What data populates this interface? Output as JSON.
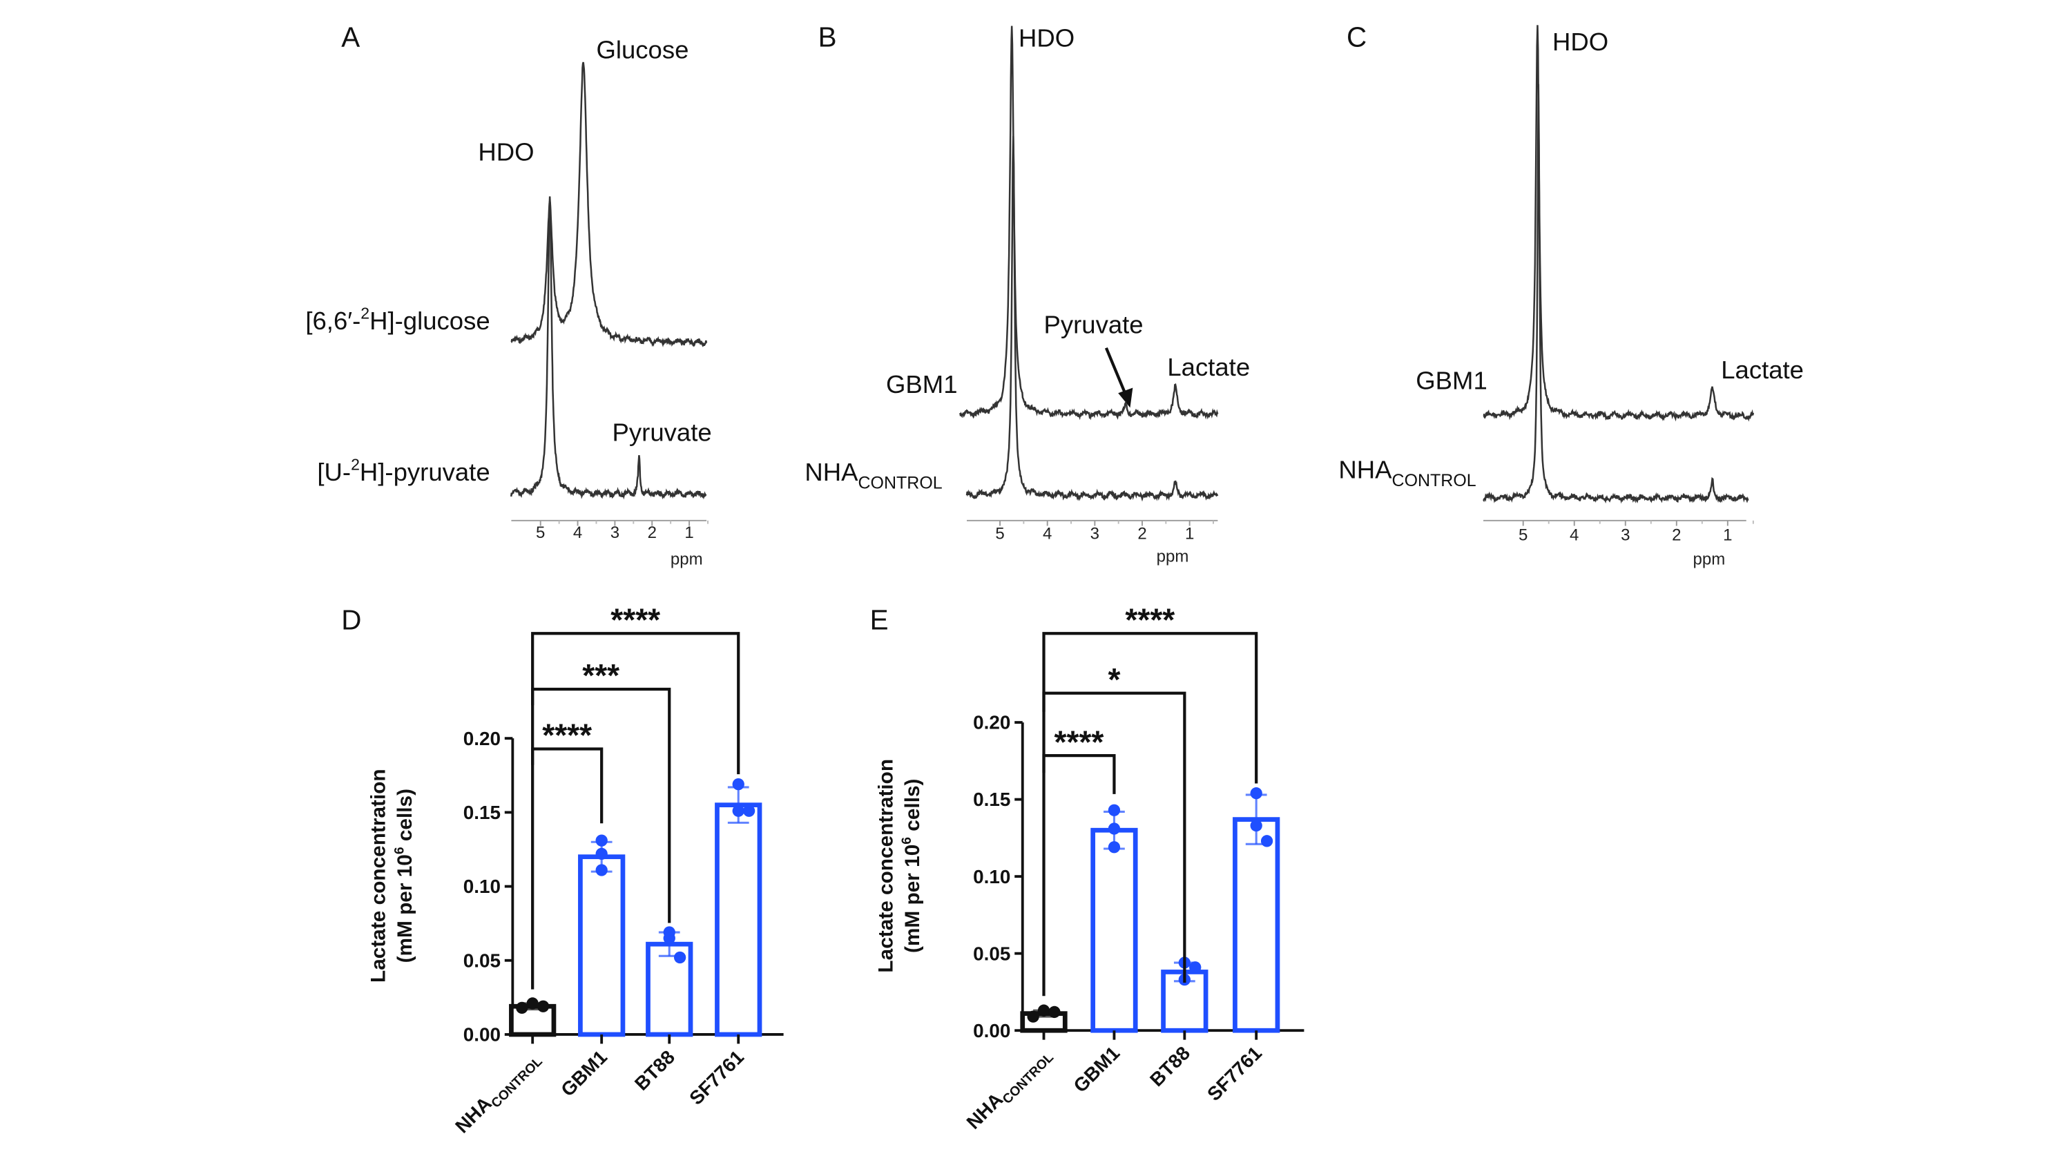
{
  "spectra": [
    {
      "panel": "A",
      "xlabel": "ppm",
      "ticks": [
        5,
        4,
        3,
        2,
        1
      ],
      "traces": [
        {
          "name": "[6,6′-²H]-glucose",
          "peaks": [
            {
              "ppm": 4.75,
              "intensity": 0.3,
              "width": 0.18
            },
            {
              "ppm": 3.85,
              "intensity": 0.62,
              "width": 0.25
            }
          ]
        },
        {
          "name": "[U-²H]-pyruvate",
          "peaks": [
            {
              "ppm": 4.75,
              "intensity": 0.66,
              "width": 0.12
            },
            {
              "ppm": 2.35,
              "intensity": 0.08,
              "width": 0.06
            }
          ]
        }
      ],
      "annotations": {
        "glucose": "Glucose",
        "hdo": "HDO",
        "pyruvate": "Pyruvate"
      },
      "trace_labels": {
        "t1_pre": "[6,6′-",
        "t1_sup": "2",
        "t1_post": "H]-glucose",
        "t2_pre": "[U-",
        "t2_sup": "2",
        "t2_post": "H]-pyruvate"
      }
    },
    {
      "panel": "B",
      "xlabel": "ppm",
      "ticks": [
        5,
        4,
        3,
        2,
        1
      ],
      "traces": [
        {
          "name": "GBM1",
          "peaks": [
            {
              "ppm": 4.75,
              "intensity": 0.86,
              "width": 0.1
            },
            {
              "ppm": 2.35,
              "intensity": 0.02,
              "width": 0.08
            },
            {
              "ppm": 1.3,
              "intensity": 0.06,
              "width": 0.1
            }
          ]
        },
        {
          "name": "NHA CONTROL",
          "peaks": [
            {
              "ppm": 4.72,
              "intensity": 0.8,
              "width": 0.07
            },
            {
              "ppm": 1.3,
              "intensity": 0.03,
              "width": 0.06
            }
          ]
        }
      ],
      "annotations": {
        "hdo": "HDO",
        "pyruvate": "Pyruvate",
        "lactate": "Lactate"
      },
      "trace_labels": {
        "gbm": "GBM1",
        "nha": "NHA",
        "nha_sub": "CONTROL"
      }
    },
    {
      "panel": "C",
      "xlabel": "ppm",
      "ticks": [
        5,
        4,
        3,
        2,
        1
      ],
      "traces": [
        {
          "name": "GBM1",
          "peaks": [
            {
              "ppm": 4.72,
              "intensity": 0.87,
              "width": 0.08
            },
            {
              "ppm": 1.3,
              "intensity": 0.06,
              "width": 0.1
            }
          ]
        },
        {
          "name": "NHA CONTROL",
          "peaks": [
            {
              "ppm": 4.7,
              "intensity": 0.92,
              "width": 0.05
            },
            {
              "ppm": 1.3,
              "intensity": 0.04,
              "width": 0.05
            }
          ]
        }
      ],
      "annotations": {
        "hdo": "HDO",
        "lactate": "Lactate"
      },
      "trace_labels": {
        "gbm": "GBM1",
        "nha": "NHA",
        "nha_sub": "CONTROL"
      }
    }
  ],
  "chart_data": [
    {
      "panel": "D",
      "type": "bar",
      "categories": [
        "NHA CONTROL",
        "GBM1",
        "BT88",
        "SF7761"
      ],
      "cat_main": [
        "NHA",
        "GBM1",
        "BT88",
        "SF7761"
      ],
      "cat_sub": [
        "CONTROL",
        "",
        "",
        ""
      ],
      "values": [
        0.019,
        0.12,
        0.061,
        0.155
      ],
      "errors": [
        0.002,
        0.01,
        0.008,
        0.012
      ],
      "points": [
        [
          0.018,
          0.021,
          0.019
        ],
        [
          0.131,
          0.122,
          0.111
        ],
        [
          0.069,
          0.065,
          0.052
        ],
        [
          0.169,
          0.151,
          0.151
        ]
      ],
      "bar_colors": [
        "#111111",
        "#1f4fff",
        "#1f4fff",
        "#1f4fff"
      ],
      "ylabel_line1": "Lactate concentration",
      "ylabel_line2_pre": "(mM per 10",
      "ylabel_sup": "6",
      "ylabel_line2_post": " cells)",
      "ylim": [
        0,
        0.2
      ],
      "yticks": [
        "0.00",
        "0.05",
        "0.10",
        "0.15",
        "0.20"
      ],
      "significance": [
        {
          "from": "NHA CONTROL",
          "to": "GBM1",
          "label": "****"
        },
        {
          "from": "NHA CONTROL",
          "to": "BT88",
          "label": "***"
        },
        {
          "from": "NHA CONTROL",
          "to": "SF7761",
          "label": "****"
        }
      ]
    },
    {
      "panel": "E",
      "type": "bar",
      "categories": [
        "NHA CONTROL",
        "GBM1",
        "BT88",
        "SF7761"
      ],
      "cat_main": [
        "NHA",
        "GBM1",
        "BT88",
        "SF7761"
      ],
      "cat_sub": [
        "CONTROL",
        "",
        "",
        ""
      ],
      "values": [
        0.011,
        0.13,
        0.038,
        0.137
      ],
      "errors": [
        0.002,
        0.012,
        0.006,
        0.016
      ],
      "points": [
        [
          0.009,
          0.013,
          0.012
        ],
        [
          0.143,
          0.131,
          0.119
        ],
        [
          0.044,
          0.033,
          0.041
        ],
        [
          0.154,
          0.133,
          0.123
        ]
      ],
      "bar_colors": [
        "#111111",
        "#1f4fff",
        "#1f4fff",
        "#1f4fff"
      ],
      "ylabel_line1": "Lactate concentration",
      "ylabel_line2_pre": "(mM per 10",
      "ylabel_sup": "6",
      "ylabel_line2_post": " cells)",
      "ylim": [
        0,
        0.2
      ],
      "yticks": [
        "0.00",
        "0.05",
        "0.10",
        "0.15",
        "0.20"
      ],
      "significance": [
        {
          "from": "NHA CONTROL",
          "to": "GBM1",
          "label": "****"
        },
        {
          "from": "NHA CONTROL",
          "to": "BT88",
          "label": "*"
        },
        {
          "from": "NHA CONTROL",
          "to": "SF7761",
          "label": "****"
        }
      ]
    }
  ]
}
